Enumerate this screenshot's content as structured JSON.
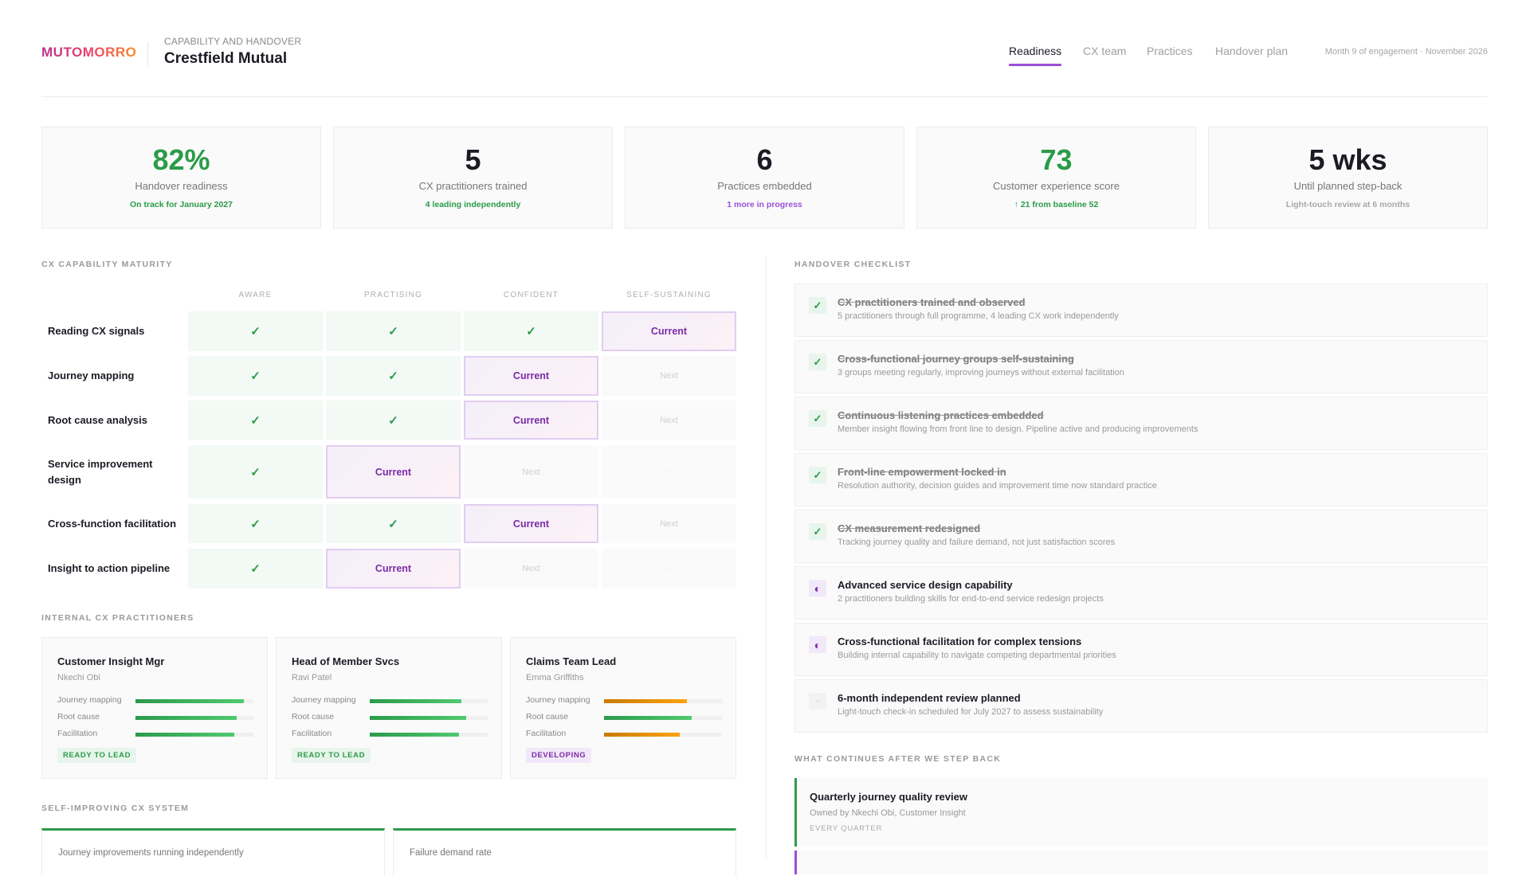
{
  "header": {
    "logo": "MUTOMORRO",
    "subtitle": "CAPABILITY AND HANDOVER",
    "title": "Crestfield Mutual",
    "nav": [
      {
        "label": "Readiness",
        "active": true
      },
      {
        "label": "CX team"
      },
      {
        "label": "Practices"
      },
      {
        "label": "Handover plan"
      }
    ],
    "meta": "Month 9 of engagement · November 2026"
  },
  "colors": {
    "accent": "#9b4fd8",
    "green": "#2a9b48",
    "purple": "#7b2aa8",
    "amber": "#e08a00"
  },
  "kpis": [
    {
      "value": "82%",
      "label": "Handover readiness",
      "sub": "On track for January 2027",
      "value_color": "#2a9b48",
      "sub_color": "#2a9b48"
    },
    {
      "value": "5",
      "label": "CX practitioners trained",
      "sub": "4 leading independently",
      "value_color": "#1d1a24",
      "sub_color": "#2a9b48"
    },
    {
      "value": "6",
      "label": "Practices embedded",
      "sub": "1 more in progress",
      "value_color": "#1d1a24",
      "sub_color": "#9b4fd8"
    },
    {
      "value": "73",
      "label": "Customer experience score",
      "sub": "↑ 21 from baseline 52",
      "value_color": "#2a9b48",
      "sub_color": "#2a9b48"
    },
    {
      "value": "5 wks",
      "label": "Until planned step-back",
      "sub": "Light-touch review at 6 months",
      "value_color": "#1d1a24",
      "sub_color": "#a8a8a8"
    }
  ],
  "maturity": {
    "title": "CX CAPABILITY MATURITY",
    "columns": [
      "AWARE",
      "PRACTISING",
      "CONFIDENT",
      "SELF-SUSTAINING"
    ],
    "labels": {
      "done": "✓",
      "current": "Current",
      "next": "Next",
      "none": "-"
    },
    "rows": [
      {
        "label": "Reading CX signals",
        "states": [
          "done",
          "done",
          "done",
          "current"
        ]
      },
      {
        "label": "Journey mapping",
        "states": [
          "done",
          "done",
          "current",
          "next"
        ]
      },
      {
        "label": "Root cause analysis",
        "states": [
          "done",
          "done",
          "current",
          "next"
        ]
      },
      {
        "label": "Service improvement design",
        "states": [
          "done",
          "current",
          "next",
          "none"
        ]
      },
      {
        "label": "Cross-function facilitation",
        "states": [
          "done",
          "done",
          "current",
          "next"
        ]
      },
      {
        "label": "Insight to action pipeline",
        "states": [
          "done",
          "current",
          "next",
          "none"
        ]
      }
    ]
  },
  "practitioners": {
    "title": "INTERNAL CX PRACTITIONERS",
    "cards": [
      {
        "role": "Customer Insight Mgr",
        "name": "Nkechi Obi",
        "skills": [
          {
            "label": "Journey mapping",
            "pct": 92,
            "color": "green"
          },
          {
            "label": "Root cause",
            "pct": 86,
            "color": "green"
          },
          {
            "label": "Facilitation",
            "pct": 84,
            "color": "green"
          }
        ],
        "badge": "READY TO LEAD",
        "badge_type": "ready"
      },
      {
        "role": "Head of Member Svcs",
        "name": "Ravi Patel",
        "skills": [
          {
            "label": "Journey mapping",
            "pct": 78,
            "color": "green"
          },
          {
            "label": "Root cause",
            "pct": 82,
            "color": "green"
          },
          {
            "label": "Facilitation",
            "pct": 76,
            "color": "green"
          }
        ],
        "badge": "READY TO LEAD",
        "badge_type": "ready"
      },
      {
        "role": "Claims Team Lead",
        "name": "Emma Griffiths",
        "skills": [
          {
            "label": "Journey mapping",
            "pct": 70,
            "color": "amber"
          },
          {
            "label": "Root cause",
            "pct": 74,
            "color": "green"
          },
          {
            "label": "Facilitation",
            "pct": 64,
            "color": "amber"
          }
        ],
        "badge": "DEVELOPING",
        "badge_type": "developing"
      }
    ]
  },
  "system": {
    "title": "SELF-IMPROVING CX SYSTEM",
    "cards": [
      {
        "label": "Journey improvements running independently"
      },
      {
        "label": "Failure demand rate"
      }
    ]
  },
  "checklist": {
    "title": "HANDOVER CHECKLIST",
    "items": [
      {
        "title": "CX practitioners trained and observed",
        "desc": "5 practitioners through full programme, 4 leading CX work independently",
        "status": "done"
      },
      {
        "title": "Cross-functional journey groups self-sustaining",
        "desc": "3 groups meeting regularly, improving journeys without external facilitation",
        "status": "done"
      },
      {
        "title": "Continuous listening practices embedded",
        "desc": "Member insight flowing from front line to design. Pipeline active and producing improvements",
        "status": "done"
      },
      {
        "title": "Front-line empowerment locked in",
        "desc": "Resolution authority, decision guides and improvement time now standard practice",
        "status": "done"
      },
      {
        "title": "CX measurement redesigned",
        "desc": "Tracking journey quality and failure demand, not just satisfaction scores",
        "status": "done"
      },
      {
        "title": "Advanced service design capability",
        "desc": "2 practitioners building skills for end-to-end service redesign projects",
        "status": "in-progress"
      },
      {
        "title": "Cross-functional facilitation for complex tensions",
        "desc": "Building internal capability to navigate competing departmental priorities",
        "status": "in-progress"
      },
      {
        "title": "6-month independent review planned",
        "desc": "Light-touch check-in scheduled for July 2027 to assess sustainability",
        "status": "planned"
      }
    ]
  },
  "continues": {
    "title": "WHAT CONTINUES AFTER WE STEP BACK",
    "items": [
      {
        "title": "Quarterly journey quality review",
        "owner": "Owned by Nkechi Obi, Customer Insight",
        "frequency": "EVERY QUARTER"
      }
    ]
  }
}
